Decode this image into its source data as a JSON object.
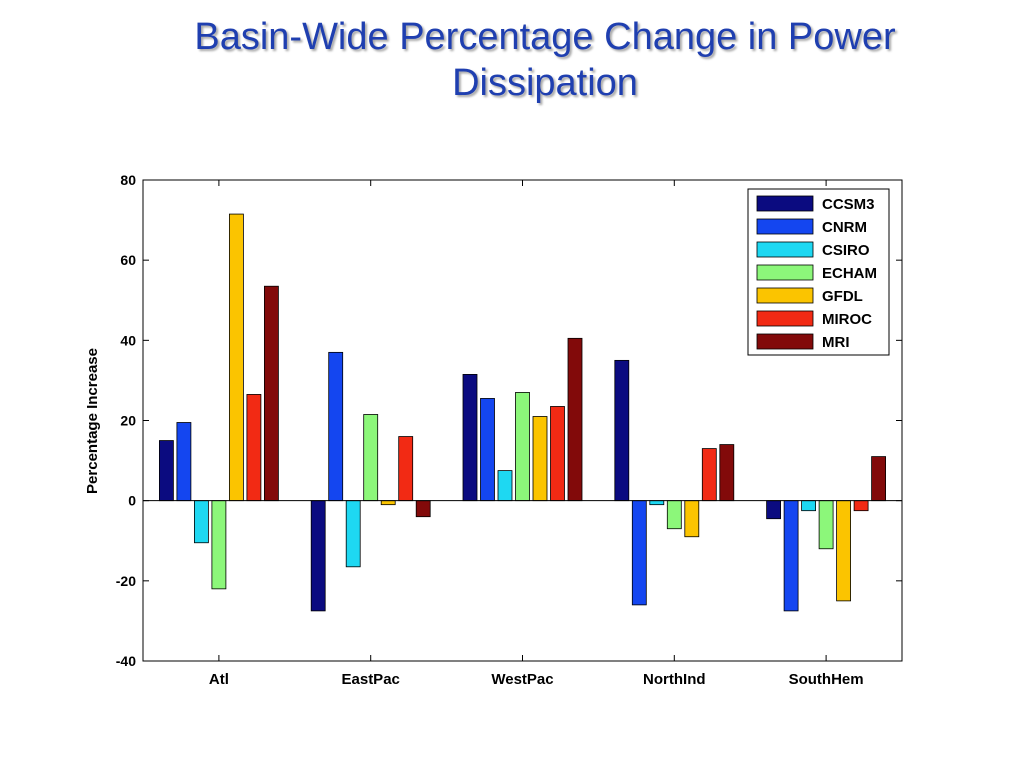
{
  "slide": {
    "title_line1": "Basin-Wide Percentage Change in Power",
    "title_line2": "Dissipation"
  },
  "chart_data": {
    "type": "bar",
    "title": "",
    "xlabel": "",
    "ylabel": "Percentage Increase",
    "ylim": [
      -40,
      80
    ],
    "yticks": [
      -40,
      -20,
      0,
      20,
      40,
      60,
      80
    ],
    "grid": false,
    "legend_position": "top-right",
    "categories": [
      "Atl",
      "EastPac",
      "WestPac",
      "NorthInd",
      "SouthHem"
    ],
    "series": [
      {
        "name": "CCSM3",
        "color": "#0b0b80",
        "values": [
          15,
          -27.5,
          31.5,
          35,
          -4.5
        ]
      },
      {
        "name": "CNRM",
        "color": "#1446f0",
        "values": [
          19.5,
          37,
          25.5,
          -26,
          -27.5
        ]
      },
      {
        "name": "CSIRO",
        "color": "#1ed8f2",
        "values": [
          -10.5,
          -16.5,
          7.5,
          -1,
          -2.5
        ]
      },
      {
        "name": "ECHAM",
        "color": "#8cf77a",
        "values": [
          -22,
          21.5,
          27,
          -7,
          -12
        ]
      },
      {
        "name": "GFDL",
        "color": "#fbc400",
        "values": [
          71.5,
          -1,
          21,
          -9,
          -25
        ]
      },
      {
        "name": "MIROC",
        "color": "#f22a14",
        "values": [
          26.5,
          16,
          23.5,
          13,
          -2.5
        ]
      },
      {
        "name": "MRI",
        "color": "#820a0a",
        "values": [
          53.5,
          -4,
          40.5,
          14,
          11
        ]
      }
    ]
  }
}
